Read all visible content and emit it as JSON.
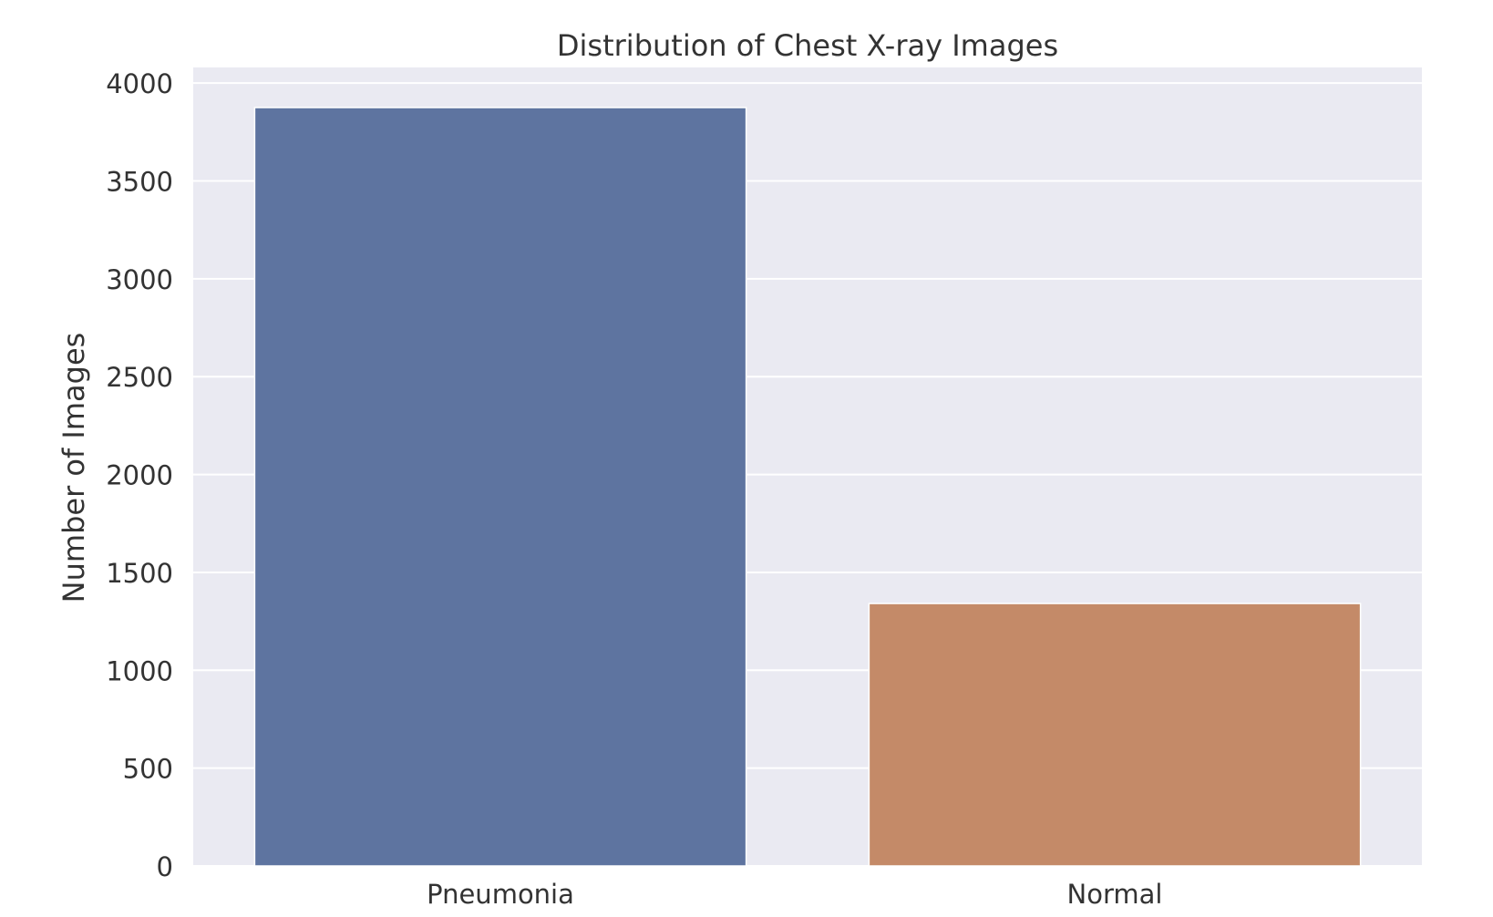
{
  "chart_data": {
    "type": "bar",
    "title": "Distribution of Chest X-ray Images",
    "xlabel": "",
    "ylabel": "Number of Images",
    "categories": [
      "Pneumonia",
      "Normal"
    ],
    "values": [
      3875,
      1341
    ],
    "colors": [
      "#5e74a0",
      "#c48a68"
    ],
    "ylim": [
      0,
      4080
    ],
    "yticks": [
      0,
      500,
      1000,
      1500,
      2000,
      2500,
      3000,
      3500,
      4000
    ],
    "grid": true,
    "legend": "none",
    "background": "#eaeaf2",
    "grid_color": "#ffffff"
  }
}
